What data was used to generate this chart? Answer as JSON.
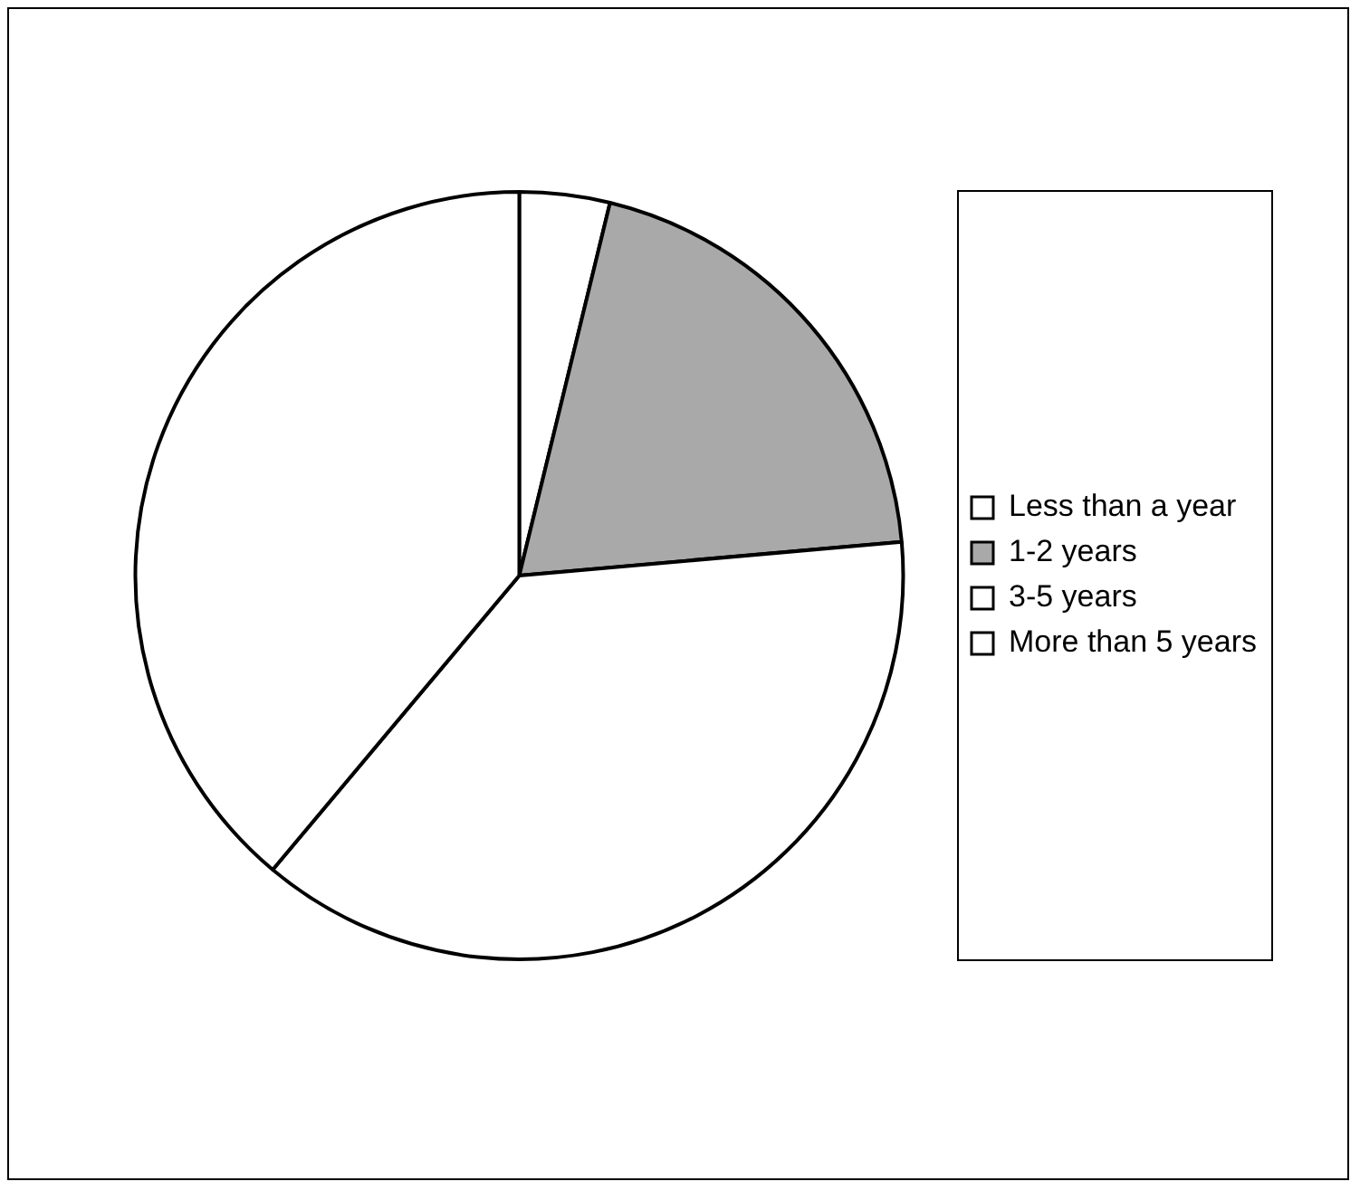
{
  "chart_data": {
    "type": "pie",
    "categories": [
      "Less than a year",
      "1-2 years",
      "3-5 years",
      "More than 5 years"
    ],
    "values": [
      3.8,
      19.8,
      37.5,
      38.9
    ],
    "colors": [
      "#ffffff",
      "#a9a9a9",
      "#ffffff",
      "#ffffff"
    ],
    "legend": "right"
  }
}
